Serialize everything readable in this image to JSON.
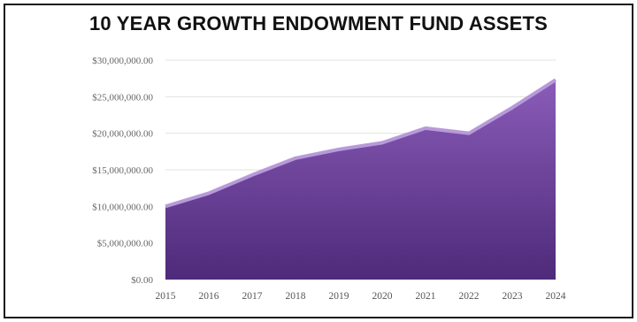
{
  "chart_data": {
    "type": "area",
    "title": "10 YEAR GROWTH ENDOWMENT FUND ASSETS",
    "xlabel": "",
    "ylabel": "",
    "categories": [
      "2015",
      "2016",
      "2017",
      "2018",
      "2019",
      "2020",
      "2021",
      "2022",
      "2023",
      "2024"
    ],
    "values": [
      10000000,
      11800000,
      14300000,
      16600000,
      17800000,
      18700000,
      20700000,
      20000000,
      23500000,
      27300000
    ],
    "ylim": [
      0,
      30000000
    ],
    "yticks": [
      0,
      5000000,
      10000000,
      15000000,
      20000000,
      25000000,
      30000000
    ],
    "ytick_labels": [
      "$0.00",
      "$5,000,000.00",
      "$10,000,000.00",
      "$15,000,000.00",
      "$20,000,000.00",
      "$25,000,000.00",
      "$30,000,000.00"
    ],
    "grid": true,
    "legend": "none",
    "colors": {
      "fill_top": "#8a5cb8",
      "fill_bottom": "#4e2a7a",
      "edge": "#b79ad9",
      "grid": "#e2e2e2"
    }
  }
}
